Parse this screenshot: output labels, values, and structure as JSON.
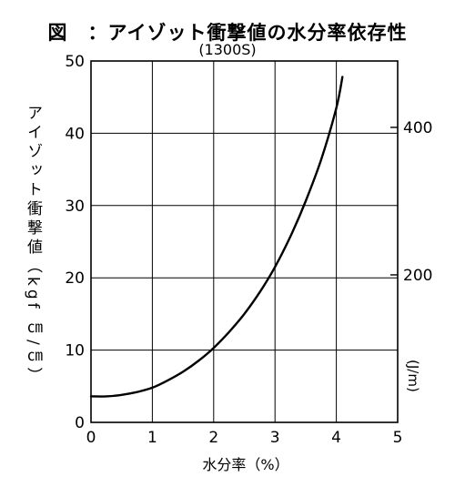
{
  "title": "図　：アイゾット衝撃値の水分率依存性",
  "subtitle": "(1300S)",
  "chart_data": {
    "type": "line",
    "title": "図　：アイゾット衝撃値の水分率依存性",
    "subtitle": "(1300S)",
    "xlabel": "水分率（%）",
    "ylabel": "アイゾット衝撃値（kgf ㎝/㎝）",
    "y2label": "(J/m)",
    "xlim": [
      0,
      5
    ],
    "ylim": [
      0,
      50
    ],
    "y2lim": [
      0,
      490
    ],
    "x_ticks": [
      "0",
      "1",
      "2",
      "3",
      "4",
      "5"
    ],
    "y_ticks": [
      "0",
      "10",
      "20",
      "30",
      "40",
      "50"
    ],
    "y2_ticks": [
      "200",
      "400"
    ],
    "grid": true,
    "series": [
      {
        "x": [
          0,
          0.25,
          0.5,
          0.75,
          1.0,
          1.25,
          1.5,
          1.75,
          2.0,
          2.25,
          2.5,
          2.75,
          3.0,
          3.25,
          3.5,
          3.75,
          4.0,
          4.1
        ],
        "values": [
          3.6,
          3.6,
          3.8,
          4.2,
          4.8,
          5.8,
          7.0,
          8.5,
          10.3,
          12.5,
          15.0,
          18.0,
          21.5,
          25.7,
          30.6,
          36.3,
          43.5,
          47.8
        ],
        "color": "#000000"
      }
    ]
  }
}
